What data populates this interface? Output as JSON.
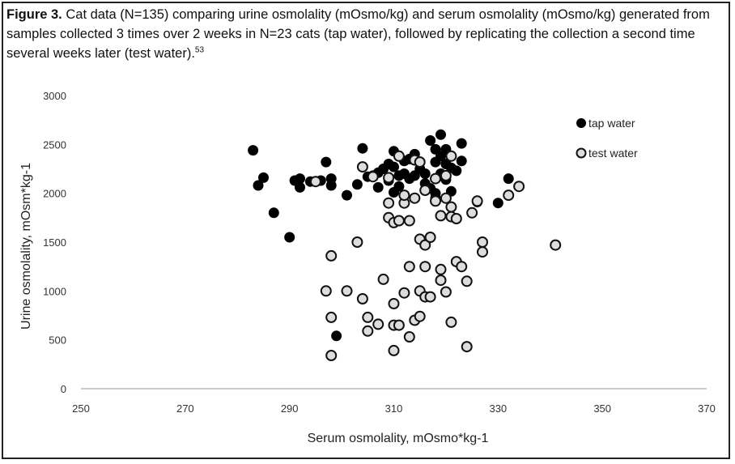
{
  "caption": {
    "lead": "Figure 3.",
    "text": " Cat data (N=135) comparing urine osmolality (mOsmo/kg) and serum osmolality (mOsmo/kg) generated from samples collected 3 times over 2 weeks in N=23 cats (tap water), followed by replicating the collection a second time several weeks later (test water).",
    "ref": "53"
  },
  "chart_data": {
    "type": "scatter",
    "xlabel": "Serum osmolality, mOsmo*kg-1",
    "ylabel": "Urine osmolality, mOsm*kg-1",
    "xlim": [
      250,
      370
    ],
    "ylim": [
      0,
      3000
    ],
    "xticks": [
      250,
      270,
      290,
      310,
      330,
      350,
      370
    ],
    "yticks": [
      0,
      500,
      1000,
      1500,
      2000,
      2500,
      3000
    ],
    "grid": false,
    "legend_position": "top-right",
    "colors": {
      "tap": "#000000",
      "test_fill": "#dddddd",
      "test_stroke": "#111111"
    },
    "series": [
      {
        "name": "tap water",
        "marker": "filled-circle",
        "points": [
          [
            283,
            2440
          ],
          [
            284,
            2080
          ],
          [
            285,
            2160
          ],
          [
            287,
            1800
          ],
          [
            290,
            1550
          ],
          [
            291,
            2130
          ],
          [
            292,
            2150
          ],
          [
            292,
            2060
          ],
          [
            294,
            2120
          ],
          [
            296,
            2130
          ],
          [
            297,
            2320
          ],
          [
            298,
            2080
          ],
          [
            298,
            2150
          ],
          [
            299,
            540
          ],
          [
            301,
            1980
          ],
          [
            303,
            2090
          ],
          [
            304,
            2460
          ],
          [
            305,
            2170
          ],
          [
            306,
            2180
          ],
          [
            307,
            2060
          ],
          [
            307,
            2210
          ],
          [
            308,
            2250
          ],
          [
            309,
            2130
          ],
          [
            309,
            2300
          ],
          [
            310,
            2270
          ],
          [
            310,
            2010
          ],
          [
            310,
            2430
          ],
          [
            311,
            2180
          ],
          [
            311,
            2070
          ],
          [
            312,
            2200
          ],
          [
            312,
            2330
          ],
          [
            313,
            2150
          ],
          [
            313,
            2350
          ],
          [
            314,
            2180
          ],
          [
            314,
            2400
          ],
          [
            315,
            2250
          ],
          [
            315,
            2320
          ],
          [
            316,
            2200
          ],
          [
            316,
            2100
          ],
          [
            317,
            2050
          ],
          [
            317,
            2540
          ],
          [
            318,
            2450
          ],
          [
            318,
            2320
          ],
          [
            318,
            2000
          ],
          [
            318,
            1950
          ],
          [
            319,
            2600
          ],
          [
            319,
            2380
          ],
          [
            319,
            2200
          ],
          [
            320,
            2450
          ],
          [
            320,
            2140
          ],
          [
            320,
            2300
          ],
          [
            321,
            2020
          ],
          [
            321,
            2260
          ],
          [
            322,
            2230
          ],
          [
            323,
            2330
          ],
          [
            323,
            2510
          ],
          [
            326,
            1910
          ],
          [
            330,
            1900
          ],
          [
            332,
            2150
          ]
        ]
      },
      {
        "name": "test water",
        "marker": "open-circle",
        "points": [
          [
            295,
            2120
          ],
          [
            297,
            1000
          ],
          [
            298,
            1360
          ],
          [
            298,
            730
          ],
          [
            298,
            340
          ],
          [
            301,
            1000
          ],
          [
            303,
            1500
          ],
          [
            304,
            920
          ],
          [
            304,
            2270
          ],
          [
            305,
            590
          ],
          [
            305,
            730
          ],
          [
            306,
            2170
          ],
          [
            307,
            660
          ],
          [
            308,
            1120
          ],
          [
            309,
            2160
          ],
          [
            309,
            1900
          ],
          [
            309,
            1750
          ],
          [
            310,
            1700
          ],
          [
            310,
            870
          ],
          [
            310,
            650
          ],
          [
            310,
            390
          ],
          [
            311,
            1720
          ],
          [
            311,
            2380
          ],
          [
            311,
            650
          ],
          [
            312,
            1900
          ],
          [
            312,
            1980
          ],
          [
            312,
            980
          ],
          [
            313,
            1720
          ],
          [
            313,
            1250
          ],
          [
            313,
            530
          ],
          [
            314,
            2340
          ],
          [
            314,
            1950
          ],
          [
            314,
            700
          ],
          [
            315,
            2320
          ],
          [
            315,
            1530
          ],
          [
            315,
            1000
          ],
          [
            315,
            740
          ],
          [
            316,
            1470
          ],
          [
            316,
            1250
          ],
          [
            316,
            940
          ],
          [
            316,
            2030
          ],
          [
            317,
            1550
          ],
          [
            317,
            940
          ],
          [
            318,
            2150
          ],
          [
            318,
            1920
          ],
          [
            319,
            1770
          ],
          [
            319,
            1220
          ],
          [
            319,
            1110
          ],
          [
            320,
            1950
          ],
          [
            320,
            990
          ],
          [
            320,
            2180
          ],
          [
            321,
            1760
          ],
          [
            321,
            1860
          ],
          [
            321,
            680
          ],
          [
            321,
            2380
          ],
          [
            322,
            1740
          ],
          [
            322,
            1300
          ],
          [
            323,
            1250
          ],
          [
            324,
            1100
          ],
          [
            324,
            430
          ],
          [
            325,
            1800
          ],
          [
            326,
            1920
          ],
          [
            327,
            1400
          ],
          [
            327,
            1500
          ],
          [
            332,
            1980
          ],
          [
            334,
            2070
          ],
          [
            341,
            1470
          ]
        ]
      }
    ]
  }
}
